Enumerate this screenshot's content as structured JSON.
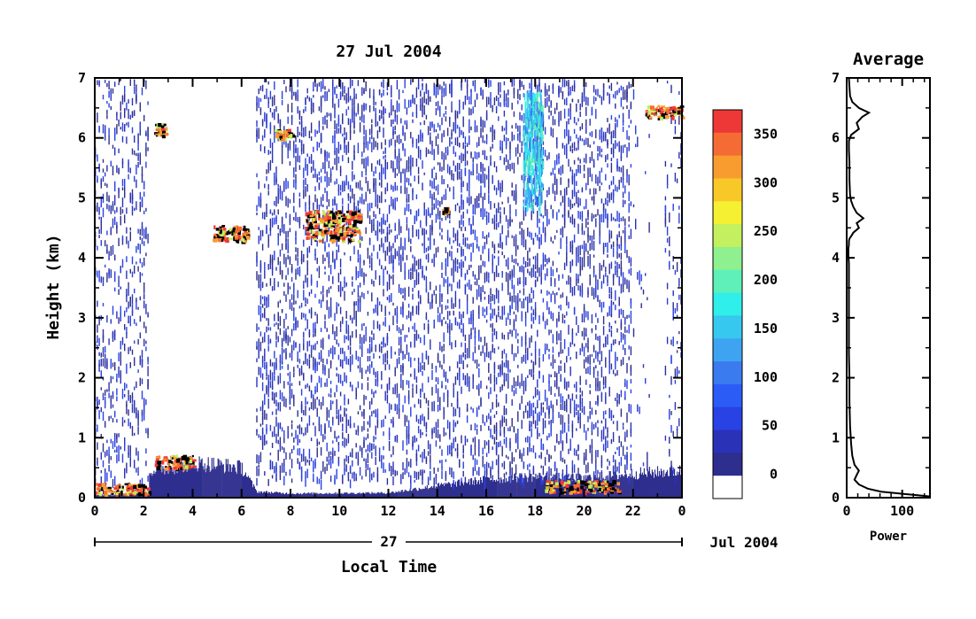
{
  "chart_data": [
    {
      "type": "heatmap",
      "title": "27 Jul 2004",
      "xlabel": "Local Time",
      "ylabel": "Height (km)",
      "xlim": [
        0,
        24
      ],
      "ylim": [
        0,
        7
      ],
      "x_ticks": [
        "0",
        "2",
        "4",
        "6",
        "8",
        "10",
        "12",
        "14",
        "16",
        "18",
        "20",
        "22",
        "0"
      ],
      "y_ticks": [
        "0",
        "1",
        "2",
        "3",
        "4",
        "5",
        "6",
        "7"
      ],
      "date_bar": {
        "day": "27",
        "month_year": "Jul 2004"
      },
      "colorbar": {
        "ticks": [
          "0",
          "50",
          "100",
          "150",
          "200",
          "250",
          "300",
          "350"
        ],
        "range": [
          -25,
          375
        ],
        "colors": [
          "#ffffff",
          "#2e2e8e",
          "#2a32b8",
          "#2842e4",
          "#2c5cf6",
          "#3a7cf0",
          "#3ea4f2",
          "#36c8ee",
          "#30eeea",
          "#5ef0b8",
          "#8ef08e",
          "#c2f05e",
          "#f6f032",
          "#f8c828",
          "#f89c30",
          "#f46c34",
          "#ee3838"
        ]
      },
      "features": [
        {
          "name": "cloud",
          "t": [
            2.4,
            2.9
          ],
          "h": [
            6.05,
            6.25
          ]
        },
        {
          "name": "cloud",
          "t": [
            4.8,
            6.2
          ],
          "h": [
            4.3,
            4.55
          ]
        },
        {
          "name": "cloud",
          "t": [
            7.3,
            8.1
          ],
          "h": [
            6.0,
            6.15
          ]
        },
        {
          "name": "cloud",
          "t": [
            8.6,
            10.8
          ],
          "h": [
            4.3,
            4.8
          ]
        },
        {
          "name": "cloud",
          "t": [
            14.2,
            14.4
          ],
          "h": [
            4.75,
            4.85
          ]
        },
        {
          "name": "virga",
          "t": [
            17.5,
            18.3
          ],
          "h": [
            4.9,
            6.8
          ]
        },
        {
          "name": "cloud",
          "t": [
            22.5,
            24.0
          ],
          "h": [
            6.35,
            6.55
          ]
        },
        {
          "name": "boundary-layer",
          "t": [
            0.0,
            2.2
          ],
          "h": [
            0.05,
            0.25
          ]
        },
        {
          "name": "boundary-layer",
          "t": [
            2.4,
            4.0
          ],
          "h": [
            0.5,
            0.72
          ]
        },
        {
          "name": "boundary-layer",
          "t": [
            18.4,
            21.4
          ],
          "h": [
            0.1,
            0.3
          ]
        }
      ]
    },
    {
      "type": "line",
      "title": "Average",
      "xlabel": "Power",
      "ylabel": "",
      "xlim": [
        0,
        150
      ],
      "ylim": [
        0,
        7
      ],
      "x_ticks": [
        "0",
        "100"
      ],
      "y_ticks": [
        "0",
        "1",
        "2",
        "3",
        "4",
        "5",
        "6",
        "7"
      ],
      "series": [
        {
          "x": [
            150,
            128,
            95,
            62,
            38,
            22,
            14,
            18,
            22,
            14,
            10,
            8,
            6,
            5,
            5,
            4,
            4,
            4,
            4,
            4,
            3,
            3,
            4,
            4,
            5,
            8,
            12,
            22,
            18,
            30,
            18,
            12,
            8,
            6,
            5,
            5,
            4,
            4,
            8,
            22,
            18,
            28,
            40,
            22,
            10,
            6,
            5,
            4
          ],
          "y": [
            0.02,
            0.04,
            0.07,
            0.1,
            0.15,
            0.22,
            0.3,
            0.38,
            0.45,
            0.55,
            0.7,
            0.9,
            1.2,
            1.6,
            2.0,
            2.4,
            2.8,
            3.2,
            3.6,
            3.9,
            4.05,
            4.15,
            4.22,
            4.28,
            4.32,
            4.36,
            4.42,
            4.5,
            4.58,
            4.66,
            4.75,
            4.85,
            4.95,
            5.05,
            5.3,
            5.6,
            5.8,
            5.95,
            6.05,
            6.15,
            6.25,
            6.35,
            6.42,
            6.5,
            6.6,
            6.7,
            6.85,
            7.0
          ]
        }
      ]
    }
  ]
}
